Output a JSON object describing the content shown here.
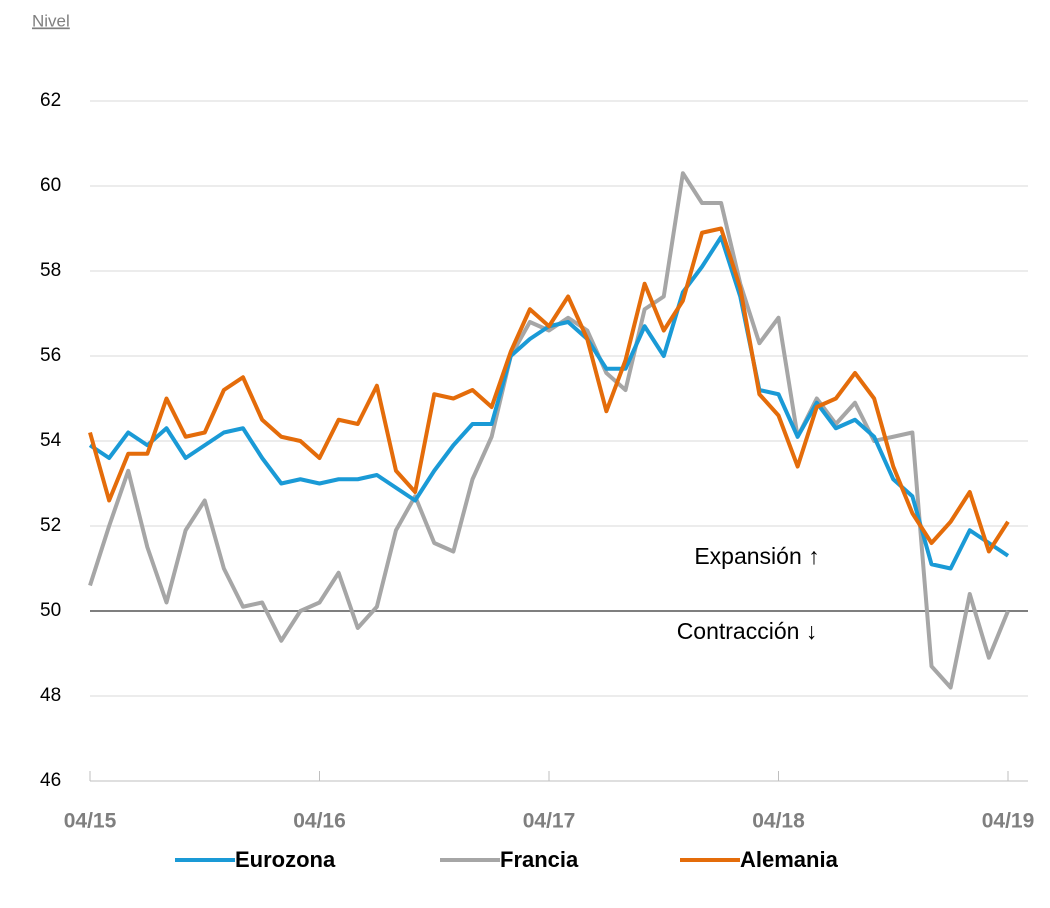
{
  "chart_data": {
    "type": "line",
    "y_axis_label": "Nivel",
    "categories": [
      "04/15",
      null,
      null,
      null,
      null,
      null,
      null,
      null,
      null,
      null,
      null,
      null,
      "04/16",
      null,
      null,
      null,
      null,
      null,
      null,
      null,
      null,
      null,
      null,
      null,
      "04/17",
      null,
      null,
      null,
      null,
      null,
      null,
      null,
      null,
      null,
      null,
      null,
      "04/18",
      null,
      null,
      null,
      null,
      null,
      null,
      null,
      null,
      null,
      null,
      null,
      "04/19"
    ],
    "series": [
      {
        "name": "Eurozona",
        "color": "#1a9ad6",
        "values": [
          53.9,
          53.6,
          54.2,
          53.9,
          54.3,
          53.6,
          53.9,
          54.2,
          54.3,
          53.6,
          53.0,
          53.1,
          53.0,
          53.1,
          53.1,
          53.2,
          52.9,
          52.6,
          53.3,
          53.9,
          54.4,
          54.4,
          56.0,
          56.4,
          56.7,
          56.8,
          56.4,
          55.7,
          55.7,
          56.7,
          56.0,
          57.5,
          58.1,
          58.8,
          57.4,
          55.2,
          55.1,
          54.1,
          54.9,
          54.3,
          54.5,
          54.1,
          53.1,
          52.7,
          51.1,
          51.0,
          51.9,
          51.6,
          51.3
        ]
      },
      {
        "name": "Francia",
        "color": "#a6a6a6",
        "values": [
          50.6,
          52.0,
          53.3,
          51.5,
          50.2,
          51.9,
          52.6,
          51.0,
          50.1,
          50.2,
          49.3,
          50.0,
          50.2,
          50.9,
          49.6,
          50.1,
          51.9,
          52.7,
          51.6,
          51.4,
          53.1,
          54.1,
          56.0,
          56.8,
          56.6,
          56.9,
          56.6,
          55.6,
          55.2,
          57.1,
          57.4,
          60.3,
          59.6,
          59.6,
          57.7,
          56.3,
          56.9,
          54.1,
          55.0,
          54.4,
          54.9,
          54.0,
          54.1,
          54.2,
          48.7,
          48.2,
          50.4,
          48.9,
          50.0
        ]
      },
      {
        "name": "Alemania",
        "color": "#e46c0a",
        "values": [
          54.2,
          52.6,
          53.7,
          53.7,
          55.0,
          54.1,
          54.2,
          55.2,
          55.5,
          54.5,
          54.1,
          54.0,
          53.6,
          54.5,
          54.4,
          55.3,
          53.3,
          52.8,
          55.1,
          55.0,
          55.2,
          54.8,
          56.1,
          57.1,
          56.7,
          57.4,
          56.4,
          54.7,
          55.9,
          57.7,
          56.6,
          57.3,
          58.9,
          59.0,
          57.6,
          55.1,
          54.6,
          53.4,
          54.8,
          55.0,
          55.6,
          55.0,
          53.4,
          52.3,
          51.6,
          52.1,
          52.8,
          51.4,
          52.1
        ]
      }
    ],
    "ylim": [
      46,
      62
    ],
    "yticks": [
      46,
      48,
      50,
      52,
      54,
      56,
      58,
      60,
      62
    ],
    "grid": true,
    "reference_line": 50,
    "annotations": [
      "Expansión ↑",
      "Contracción ↓"
    ],
    "legend": "bottom"
  }
}
